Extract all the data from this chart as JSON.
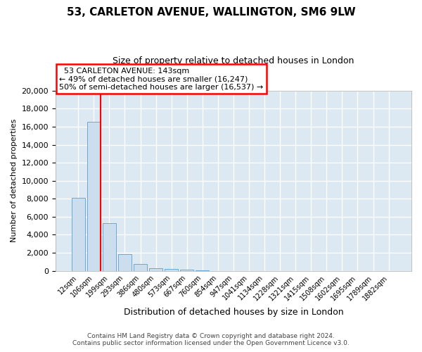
{
  "title": "53, CARLETON AVENUE, WALLINGTON, SM6 9LW",
  "subtitle": "Size of property relative to detached houses in London",
  "xlabel": "Distribution of detached houses by size in London",
  "ylabel": "Number of detached properties",
  "bar_color": "#ccdded",
  "bar_edge_color": "#6aaad4",
  "background_color": "#dce8f2",
  "grid_color": "#ffffff",
  "annotation_title": "53 CARLETON AVENUE: 143sqm",
  "annotation_line1": "← 49% of detached houses are smaller (16,247)",
  "annotation_line2": "50% of semi-detached houses are larger (16,537) →",
  "categories": [
    "12sqm",
    "106sqm",
    "199sqm",
    "293sqm",
    "386sqm",
    "480sqm",
    "573sqm",
    "667sqm",
    "760sqm",
    "854sqm",
    "947sqm",
    "1041sqm",
    "1134sqm",
    "1228sqm",
    "1321sqm",
    "1415sqm",
    "1508sqm",
    "1602sqm",
    "1695sqm",
    "1789sqm",
    "1882sqm"
  ],
  "values": [
    8100,
    16550,
    5250,
    1820,
    780,
    310,
    190,
    115,
    65,
    0,
    0,
    0,
    0,
    0,
    0,
    0,
    0,
    0,
    0,
    0,
    0
  ],
  "ylim": [
    0,
    20000
  ],
  "yticks": [
    0,
    2000,
    4000,
    6000,
    8000,
    10000,
    12000,
    14000,
    16000,
    18000,
    20000
  ],
  "footer1": "Contains HM Land Registry data © Crown copyright and database right 2024.",
  "footer2": "Contains public sector information licensed under the Open Government Licence v3.0."
}
